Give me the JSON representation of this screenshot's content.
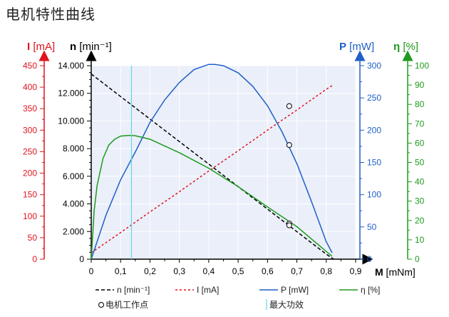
{
  "page_title": "电机特性曲线",
  "colors": {
    "n": "#000000",
    "I": "#e0141e",
    "P": "#1f5fc8",
    "eta": "#1e9a1e",
    "max_power_line": "#5fd8e8",
    "plot_bg": "#eaeff9",
    "grid": "#ffffff"
  },
  "chart_data": {
    "type": "line",
    "title": "电机特性曲线",
    "xlabel": "M [mNm]",
    "xlim": [
      0,
      0.9
    ],
    "x_ticks": [
      "0",
      "0,1",
      "0,2",
      "0,3",
      "0,4",
      "0,5",
      "0,6",
      "0,7",
      "0,8",
      "0,9"
    ],
    "axes": {
      "I": {
        "label": "I [mA]",
        "unit": "mA",
        "range": [
          0,
          450
        ],
        "ticks": [
          "0",
          "50",
          "100",
          "150",
          "200",
          "250",
          "300",
          "350",
          "400",
          "450"
        ]
      },
      "n": {
        "label": "n [min⁻¹]",
        "unit": "min⁻¹",
        "range": [
          0,
          14000
        ],
        "ticks": [
          "0",
          "2.000",
          "4.000",
          "6.000",
          "8.000",
          "10.000",
          "12.000",
          "14.000"
        ]
      },
      "P": {
        "label": "P [mW]",
        "unit": "mW",
        "range": [
          0,
          300
        ],
        "ticks": [
          "0",
          "50",
          "100",
          "150",
          "200",
          "250",
          "300"
        ]
      },
      "eta": {
        "label": "η [%]",
        "unit": "%",
        "range": [
          0,
          100
        ],
        "ticks": [
          "0",
          "10",
          "20",
          "30",
          "40",
          "50",
          "60",
          "70",
          "80",
          "90",
          "100"
        ]
      }
    },
    "grid": true,
    "legend_position": "bottom",
    "series": [
      {
        "name": "n [min⁻¹]",
        "axis": "n",
        "style": "dashed",
        "x": [
          0,
          0.1,
          0.2,
          0.3,
          0.4,
          0.5,
          0.6,
          0.7,
          0.8,
          0.825
        ],
        "values": [
          13400,
          11770,
          10140,
          8510,
          6880,
          5250,
          3620,
          1990,
          360,
          0
        ]
      },
      {
        "name": "I [mA]",
        "axis": "I",
        "style": "dotted",
        "x": [
          0,
          0.1,
          0.2,
          0.3,
          0.4,
          0.5,
          0.6,
          0.7,
          0.8,
          0.825
        ],
        "values": [
          15,
          62,
          110,
          157,
          205,
          252,
          300,
          347,
          395,
          406
        ]
      },
      {
        "name": "P [mW]",
        "axis": "P",
        "style": "solid",
        "x": [
          0,
          0.05,
          0.1,
          0.15,
          0.2,
          0.25,
          0.3,
          0.35,
          0.4,
          0.42,
          0.45,
          0.5,
          0.55,
          0.6,
          0.65,
          0.7,
          0.75,
          0.8,
          0.82
        ],
        "values": [
          0,
          68,
          123,
          166,
          212,
          247,
          274,
          294,
          302,
          302,
          300,
          289,
          268,
          238,
          197,
          148,
          89,
          27,
          10
        ]
      },
      {
        "name": "η [%]",
        "axis": "eta",
        "style": "solid",
        "x": [
          0,
          0.01,
          0.02,
          0.04,
          0.06,
          0.08,
          0.1,
          0.13,
          0.15,
          0.2,
          0.3,
          0.4,
          0.5,
          0.6,
          0.7,
          0.8,
          0.82
        ],
        "values": [
          0,
          25,
          38,
          52,
          59,
          62,
          63.6,
          64,
          63.8,
          62,
          55,
          47,
          37.5,
          27,
          16.8,
          4,
          1.5
        ]
      }
    ],
    "annotations": [
      {
        "name": "电机工作点",
        "marker": "open-circle",
        "x": 0.674,
        "points": [
          {
            "axis": "n",
            "y": 2580
          },
          {
            "axis": "I",
            "y": 356
          },
          {
            "axis": "P",
            "y": 177
          },
          {
            "axis": "eta",
            "y": 17.5
          }
        ]
      },
      {
        "name": "最大功效",
        "marker": "vertical-line",
        "x": 0.137
      }
    ],
    "legend": [
      {
        "label": "n [min⁻¹]",
        "series": "n"
      },
      {
        "label": "I [mA]",
        "series": "I"
      },
      {
        "label": "P [mW]",
        "series": "P"
      },
      {
        "label": "η [%]",
        "series": "eta"
      },
      {
        "label": "电机工作点",
        "series": "operating_point"
      },
      {
        "label": "最大功效",
        "series": "max_power"
      }
    ]
  }
}
